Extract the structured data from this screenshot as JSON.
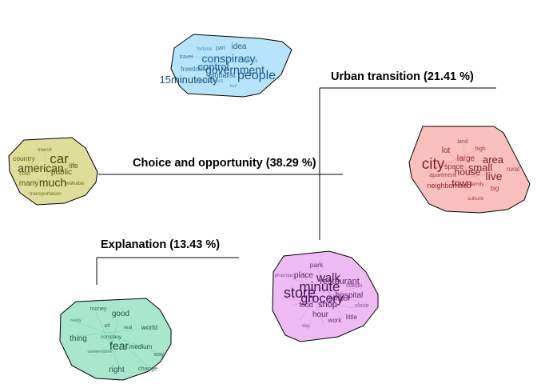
{
  "clusters": [
    {
      "id": "conspiracy",
      "color": "#33aaff",
      "fill": "#b8e4fb",
      "title": "",
      "words": [
        "idea",
        "fortune",
        "part",
        "travel",
        "conspiracy",
        "agency",
        "control",
        "government",
        "people",
        "freedom",
        "15minutecity",
        "globalist",
        "enforcement",
        "tool"
      ]
    },
    {
      "id": "urban",
      "color": "#ee5555",
      "fill": "#f9c0bd",
      "title": "Urban transition (21.41 %)",
      "words": [
        "land",
        "high",
        "lot",
        "city",
        "large",
        "area",
        "space",
        "small",
        "rural",
        "house",
        "live",
        "apartment",
        "town",
        "neighborhood",
        "family",
        "big",
        "suburb"
      ]
    },
    {
      "id": "choice",
      "color": "#a8a020",
      "fill": "#dede9a",
      "title": "Choice and opportunity (38.29 %)",
      "words": [
        "transit",
        "country",
        "car",
        "american",
        "life",
        "public",
        "cost",
        "many",
        "much",
        "walkable",
        "transportation"
      ]
    },
    {
      "id": "explanation",
      "color": "#33bb88",
      "fill": "#a8e6cd",
      "title": "Explanation (13.43 %)",
      "words": [
        "money",
        "good",
        "reality",
        "oil",
        "real",
        "world",
        "thing",
        "company",
        "fear",
        "medium",
        "conservative",
        "way",
        "right",
        "change"
      ]
    },
    {
      "id": "proximity",
      "color": "#cc44dd",
      "fill": "#eebcf3",
      "title": "",
      "words": [
        "park",
        "place",
        "walk",
        "pharmacy",
        "restaurant",
        "minute",
        "station",
        "store",
        "hospital",
        "grocery",
        "school",
        "food",
        "shop",
        "close",
        "hour",
        "little",
        "work",
        "day"
      ]
    }
  ]
}
